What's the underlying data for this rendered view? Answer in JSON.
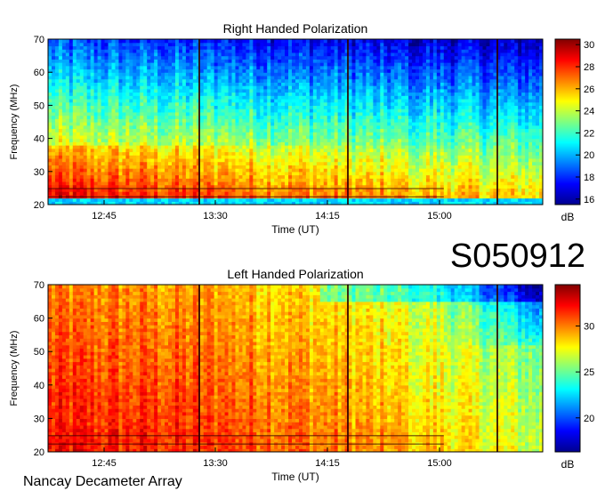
{
  "station_code": "S050912",
  "instrument": "Nancay Decameter Array",
  "chart_data": [
    {
      "type": "heatmap",
      "title": "Right Handed Polarization",
      "xlabel": "Time (UT)",
      "ylabel": "Frequency (MHz)",
      "x_ticks": [
        "12:45",
        "13:30",
        "14:15",
        "15:00"
      ],
      "y_ticks": [
        20,
        30,
        40,
        50,
        60,
        70
      ],
      "ylim": [
        20,
        70
      ],
      "colorbar": {
        "label": "dB",
        "ticks": [
          16,
          18,
          20,
          22,
          24,
          26,
          28,
          30
        ],
        "range": [
          15.5,
          30.5
        ]
      }
    },
    {
      "type": "heatmap",
      "title": "Left Handed Polarization",
      "xlabel": "Time (UT)",
      "ylabel": "Frequency (MHz)",
      "x_ticks": [
        "12:45",
        "13:30",
        "14:15",
        "15:00"
      ],
      "y_ticks": [
        20,
        30,
        40,
        50,
        60,
        70
      ],
      "ylim": [
        20,
        70
      ],
      "colorbar": {
        "label": "dB",
        "ticks": [
          20,
          25,
          30
        ],
        "range": [
          16.3,
          34.5
        ]
      }
    }
  ]
}
